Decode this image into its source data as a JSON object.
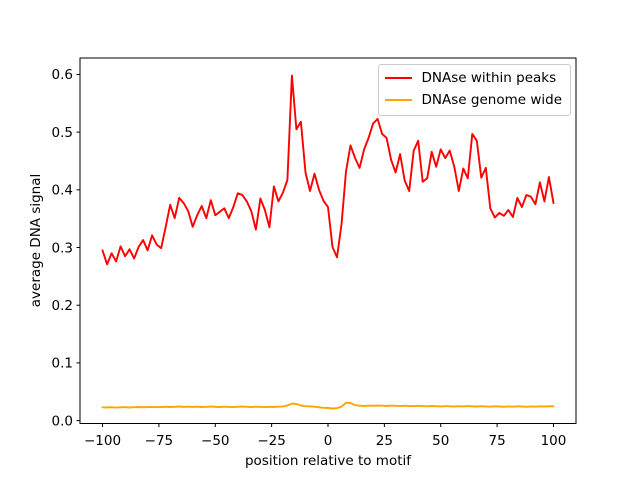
{
  "figure": {
    "background": "#ffffff",
    "spine_color": "#000000",
    "tick_color": "#000000",
    "text_color": "#000000"
  },
  "chart_data": {
    "type": "line",
    "title": "",
    "xlabel": "position relative to motif",
    "ylabel": "average DNA signal",
    "xlim": [
      -110,
      110
    ],
    "ylim": [
      -0.005,
      0.6285
    ],
    "grid": false,
    "legend_position": "upper right",
    "xticks": {
      "values": [
        -100,
        -75,
        -50,
        -25,
        0,
        25,
        50,
        75,
        100
      ],
      "labels": [
        "−100",
        "−75",
        "−50",
        "−25",
        "0",
        "25",
        "50",
        "75",
        "100"
      ]
    },
    "yticks": {
      "values": [
        0.0,
        0.1,
        0.2,
        0.3,
        0.4,
        0.5,
        0.6
      ],
      "labels": [
        "0.0",
        "0.1",
        "0.2",
        "0.3",
        "0.4",
        "0.5",
        "0.6"
      ]
    },
    "x": [
      -100,
      -98,
      -96,
      -94,
      -92,
      -90,
      -88,
      -86,
      -84,
      -82,
      -80,
      -78,
      -76,
      -74,
      -72,
      -70,
      -68,
      -66,
      -64,
      -62,
      -60,
      -58,
      -56,
      -54,
      -52,
      -50,
      -48,
      -46,
      -44,
      -42,
      -40,
      -38,
      -36,
      -34,
      -32,
      -30,
      -28,
      -26,
      -24,
      -22,
      -20,
      -18,
      -16,
      -14,
      -12,
      -10,
      -8,
      -6,
      -4,
      -2,
      0,
      2,
      4,
      6,
      8,
      10,
      12,
      14,
      16,
      18,
      20,
      22,
      24,
      26,
      28,
      30,
      32,
      34,
      36,
      38,
      40,
      42,
      44,
      46,
      48,
      50,
      52,
      54,
      56,
      58,
      60,
      62,
      64,
      66,
      68,
      70,
      72,
      74,
      76,
      78,
      80,
      82,
      84,
      86,
      88,
      90,
      92,
      94,
      96,
      98,
      100
    ],
    "series": [
      {
        "name": "DNAse within peaks",
        "color": "#ff0000",
        "values": [
          0.295,
          0.271,
          0.29,
          0.276,
          0.302,
          0.285,
          0.297,
          0.281,
          0.301,
          0.313,
          0.295,
          0.321,
          0.305,
          0.299,
          0.336,
          0.374,
          0.351,
          0.386,
          0.377,
          0.363,
          0.336,
          0.356,
          0.372,
          0.351,
          0.382,
          0.356,
          0.362,
          0.368,
          0.351,
          0.37,
          0.394,
          0.391,
          0.38,
          0.363,
          0.331,
          0.385,
          0.365,
          0.335,
          0.406,
          0.38,
          0.395,
          0.417,
          0.598,
          0.505,
          0.518,
          0.43,
          0.398,
          0.428,
          0.4,
          0.381,
          0.37,
          0.301,
          0.283,
          0.34,
          0.432,
          0.477,
          0.455,
          0.438,
          0.47,
          0.49,
          0.515,
          0.523,
          0.497,
          0.49,
          0.452,
          0.43,
          0.462,
          0.416,
          0.398,
          0.468,
          0.485,
          0.414,
          0.42,
          0.466,
          0.44,
          0.47,
          0.455,
          0.468,
          0.44,
          0.398,
          0.437,
          0.42,
          0.497,
          0.485,
          0.421,
          0.438,
          0.368,
          0.352,
          0.36,
          0.355,
          0.365,
          0.353,
          0.386,
          0.37,
          0.391,
          0.388,
          0.375,
          0.413,
          0.38,
          0.422,
          0.377
        ]
      },
      {
        "name": "DNAse genome wide",
        "color": "#ffa500",
        "values": [
          0.023,
          0.0228,
          0.0232,
          0.0226,
          0.023,
          0.0234,
          0.0228,
          0.0232,
          0.0236,
          0.023,
          0.0234,
          0.0238,
          0.0232,
          0.0236,
          0.024,
          0.0236,
          0.024,
          0.0244,
          0.0238,
          0.0242,
          0.0238,
          0.0242,
          0.0236,
          0.024,
          0.0244,
          0.024,
          0.0236,
          0.0242,
          0.0238,
          0.0234,
          0.024,
          0.0244,
          0.024,
          0.0236,
          0.0242,
          0.0238,
          0.0234,
          0.024,
          0.0236,
          0.0242,
          0.0246,
          0.0262,
          0.0295,
          0.0288,
          0.0262,
          0.025,
          0.0246,
          0.0242,
          0.023,
          0.0222,
          0.0218,
          0.021,
          0.0215,
          0.0242,
          0.031,
          0.0305,
          0.0268,
          0.0258,
          0.0254,
          0.026,
          0.0256,
          0.0262,
          0.0258,
          0.0254,
          0.026,
          0.0256,
          0.0252,
          0.0258,
          0.0254,
          0.025,
          0.0256,
          0.0252,
          0.0248,
          0.0254,
          0.025,
          0.0246,
          0.0252,
          0.0248,
          0.0244,
          0.025,
          0.0246,
          0.0252,
          0.0248,
          0.0244,
          0.025,
          0.0246,
          0.0242,
          0.0248,
          0.0244,
          0.024,
          0.0246,
          0.0242,
          0.0248,
          0.0244,
          0.024,
          0.0246,
          0.0242,
          0.0248,
          0.0244,
          0.025,
          0.0246
        ]
      }
    ]
  }
}
